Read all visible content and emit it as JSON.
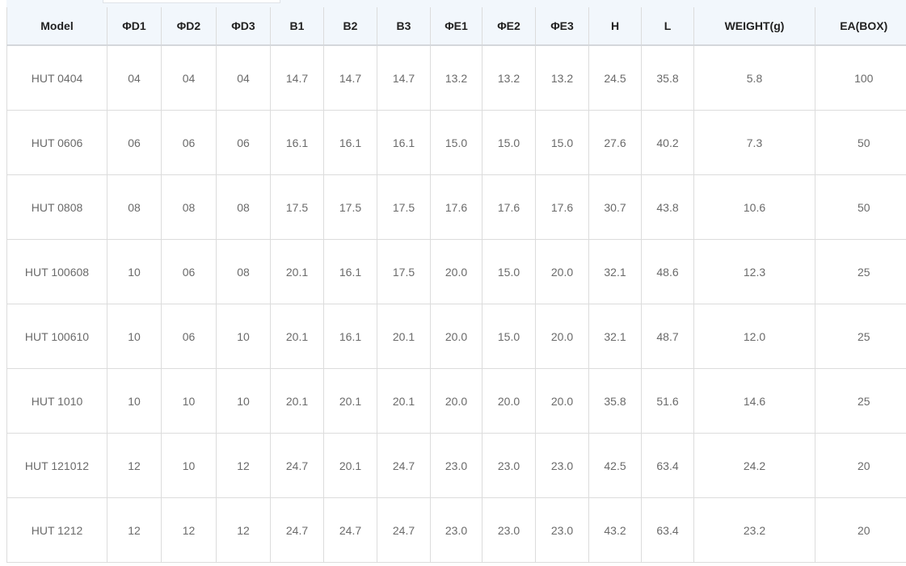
{
  "table": {
    "headers": [
      "Model",
      "ΦD1",
      "ΦD2",
      "ΦD3",
      "B1",
      "B2",
      "B3",
      "ΦE1",
      "ΦE2",
      "ΦE3",
      "H",
      "L",
      "WEIGHT(g)",
      "EA(BOX)"
    ],
    "rows": [
      [
        "HUT 0404",
        "04",
        "04",
        "04",
        "14.7",
        "14.7",
        "14.7",
        "13.2",
        "13.2",
        "13.2",
        "24.5",
        "35.8",
        "5.8",
        "100"
      ],
      [
        "HUT 0606",
        "06",
        "06",
        "06",
        "16.1",
        "16.1",
        "16.1",
        "15.0",
        "15.0",
        "15.0",
        "27.6",
        "40.2",
        "7.3",
        "50"
      ],
      [
        "HUT 0808",
        "08",
        "08",
        "08",
        "17.5",
        "17.5",
        "17.5",
        "17.6",
        "17.6",
        "17.6",
        "30.7",
        "43.8",
        "10.6",
        "50"
      ],
      [
        "HUT 100608",
        "10",
        "06",
        "08",
        "20.1",
        "16.1",
        "17.5",
        "20.0",
        "15.0",
        "20.0",
        "32.1",
        "48.6",
        "12.3",
        "25"
      ],
      [
        "HUT 100610",
        "10",
        "06",
        "10",
        "20.1",
        "16.1",
        "20.1",
        "20.0",
        "15.0",
        "20.0",
        "32.1",
        "48.7",
        "12.0",
        "25"
      ],
      [
        "HUT 1010",
        "10",
        "10",
        "10",
        "20.1",
        "20.1",
        "20.1",
        "20.0",
        "20.0",
        "20.0",
        "35.8",
        "51.6",
        "14.6",
        "25"
      ],
      [
        "HUT 121012",
        "12",
        "10",
        "12",
        "24.7",
        "20.1",
        "24.7",
        "23.0",
        "23.0",
        "23.0",
        "42.5",
        "63.4",
        "24.2",
        "20"
      ],
      [
        "HUT 1212",
        "12",
        "12",
        "12",
        "24.7",
        "24.7",
        "24.7",
        "23.0",
        "23.0",
        "23.0",
        "43.2",
        "63.4",
        "23.2",
        "20"
      ]
    ]
  }
}
